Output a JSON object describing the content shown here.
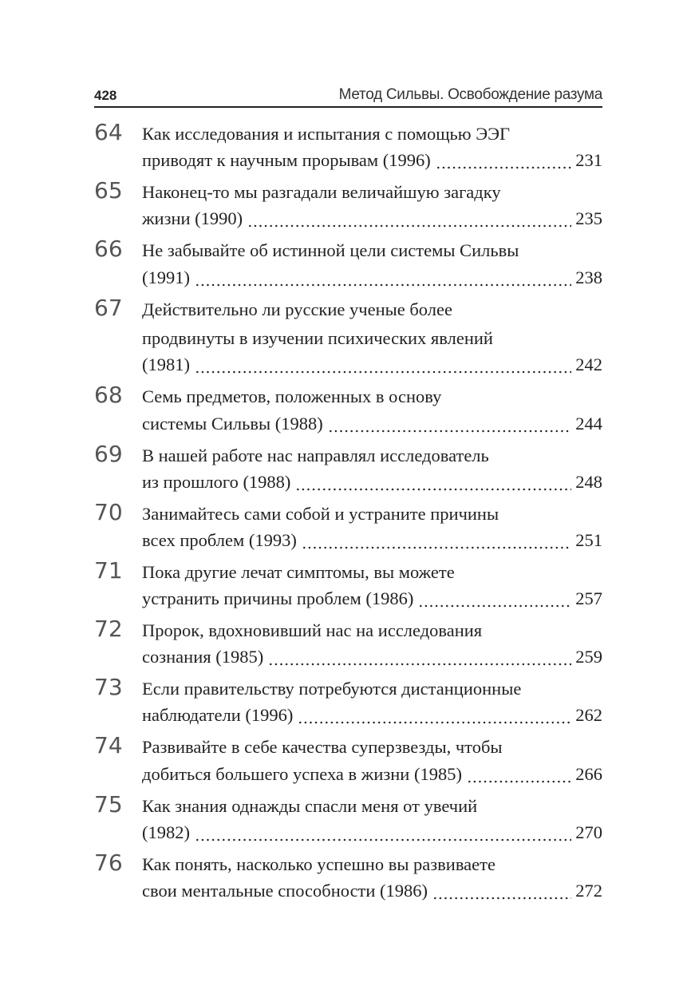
{
  "header": {
    "page_number": "428",
    "running_title": "Метод Сильвы. Освобождение разума"
  },
  "entries": [
    {
      "number": "64",
      "lines": [
        "Как исследования и испытания с помощью ЭЭГ"
      ],
      "last": "приводят к научным прорывам (1996)",
      "page": "231"
    },
    {
      "number": "65",
      "lines": [
        "Наконец-то мы разгадали величайшую загадку"
      ],
      "last": "жизни (1990)",
      "page": "235"
    },
    {
      "number": "66",
      "lines": [
        "Не забывайте об истинной цели системы Сильвы"
      ],
      "last": "(1991)",
      "page": "238"
    },
    {
      "number": "67",
      "lines": [
        "Действительно ли русские ученые более",
        "продвинуты в изучении психических явлений"
      ],
      "last": "(1981)",
      "page": "242"
    },
    {
      "number": "68",
      "lines": [
        "Семь предметов, положенных в основу"
      ],
      "last": "системы Сильвы (1988)",
      "page": "244"
    },
    {
      "number": "69",
      "lines": [
        "В нашей работе нас направлял исследователь"
      ],
      "last": "из прошлого (1988)",
      "page": "248"
    },
    {
      "number": "70",
      "lines": [
        "Занимайтесь сами собой и устраните причины"
      ],
      "last": "всех проблем (1993)",
      "page": "251"
    },
    {
      "number": "71",
      "lines": [
        "Пока другие лечат симптомы, вы можете"
      ],
      "last": "устранить причины проблем (1986)",
      "page": "257"
    },
    {
      "number": "72",
      "lines": [
        "Пророк, вдохновивший нас на исследования"
      ],
      "last": "сознания (1985)",
      "page": "259"
    },
    {
      "number": "73",
      "lines": [
        "Если правительству потребуются дистанционные"
      ],
      "last": "наблюдатели (1996)",
      "page": "262"
    },
    {
      "number": "74",
      "lines": [
        "Развивайте в себе качества суперзвезды, чтобы"
      ],
      "last": "добиться большего успеха в жизни (1985)",
      "page": "266"
    },
    {
      "number": "75",
      "lines": [
        "Как знания однажды спасли меня от увечий"
      ],
      "last": "(1982)",
      "page": "270"
    },
    {
      "number": "76",
      "lines": [
        "Как понять, насколько успешно вы развиваете"
      ],
      "last": "свои ментальные способности (1986)",
      "page": "272"
    }
  ]
}
